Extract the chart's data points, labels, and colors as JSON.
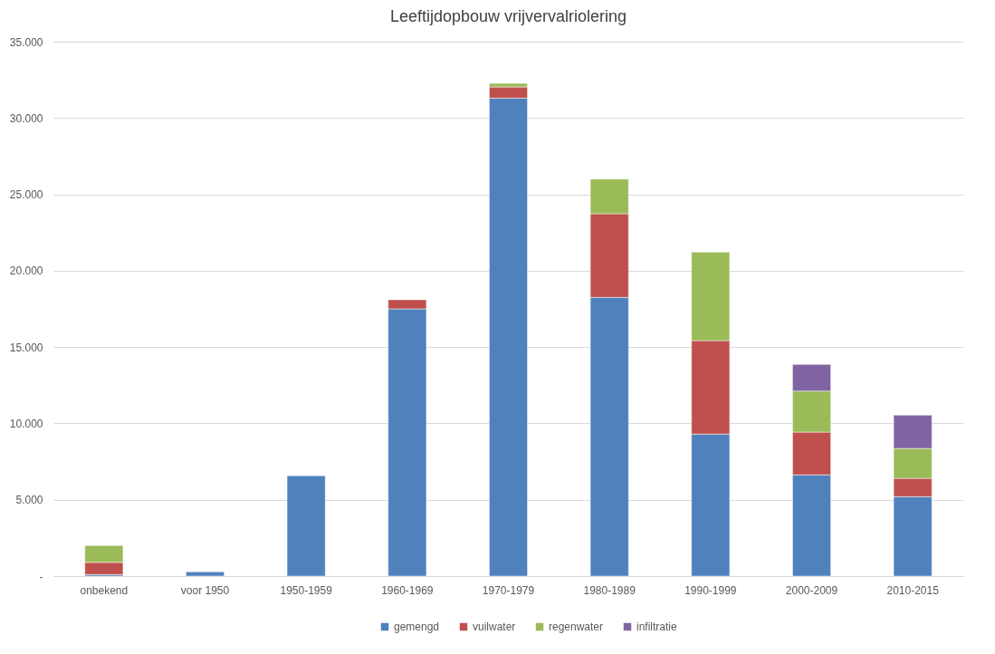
{
  "chart_data": {
    "type": "bar",
    "title": "Leeftijdopbouw vrijvervalriolering",
    "stacked": true,
    "legend": "bottom",
    "grid": "y",
    "categories": [
      "onbekend",
      "voor 1950",
      "1950-1959",
      "1960-1969",
      "1970-1979",
      "1980-1989",
      "1990-1999",
      "2000-2009",
      "2010-2015"
    ],
    "ylim": [
      0,
      35000
    ],
    "yticks": [
      {
        "value": 0,
        "label": "-"
      },
      {
        "value": 5000,
        "label": "5.000"
      },
      {
        "value": 10000,
        "label": "10.000"
      },
      {
        "value": 15000,
        "label": "15.000"
      },
      {
        "value": 20000,
        "label": "20.000"
      },
      {
        "value": 25000,
        "label": "25.000"
      },
      {
        "value": 30000,
        "label": "30.000"
      },
      {
        "value": 35000,
        "label": "35.000"
      }
    ],
    "series": [
      {
        "name": "gemengd",
        "color": "#4f81bd",
        "values": [
          100,
          280,
          6570,
          17500,
          31300,
          18250,
          9300,
          6630,
          5200
        ]
      },
      {
        "name": "vuilwater",
        "color": "#c0504d",
        "values": [
          800,
          null,
          null,
          600,
          730,
          5480,
          6120,
          2800,
          1200
        ]
      },
      {
        "name": "regenwater",
        "color": "#9bbb59",
        "values": [
          1100,
          null,
          null,
          null,
          240,
          2270,
          5800,
          2690,
          1960
        ]
      },
      {
        "name": "infiltratie",
        "color": "#8064a2",
        "values": [
          null,
          null,
          null,
          null,
          null,
          null,
          null,
          1740,
          2180
        ]
      }
    ]
  }
}
